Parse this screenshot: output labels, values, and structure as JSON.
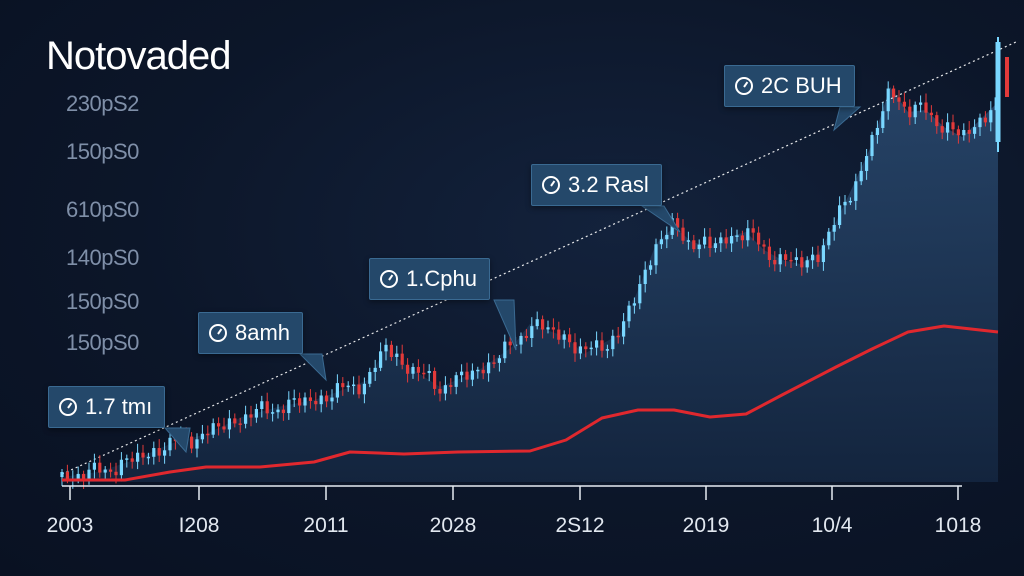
{
  "chart_data": {
    "type": "line",
    "title": "Notovaded",
    "y_tick_labels": [
      "230pS2",
      "150pS0",
      "610pS0",
      "140pS0",
      "150pS0",
      "150pS0"
    ],
    "x_tick_labels": [
      "2003",
      "I208",
      "2011",
      "2028",
      "2S12",
      "2019",
      "10/4",
      "1018"
    ],
    "x_range": [
      0,
      1000
    ],
    "y_range": [
      0,
      450
    ],
    "grid": false,
    "series": [
      {
        "style": "candlestick",
        "color_up": "#7ad7ff",
        "color_down": "#e23a3a",
        "points": [
          [
            0,
            5
          ],
          [
            40,
            10
          ],
          [
            80,
            22
          ],
          [
            120,
            38
          ],
          [
            160,
            48
          ],
          [
            200,
            65
          ],
          [
            240,
            75
          ],
          [
            280,
            82
          ],
          [
            300,
            88
          ],
          [
            340,
            102
          ],
          [
            360,
            135
          ],
          [
            380,
            118
          ],
          [
            420,
            95
          ],
          [
            460,
            110
          ],
          [
            500,
            135
          ],
          [
            520,
            158
          ],
          [
            560,
            145
          ],
          [
            580,
            128
          ],
          [
            620,
            148
          ],
          [
            640,
            192
          ],
          [
            660,
            238
          ],
          [
            680,
            255
          ],
          [
            700,
            240
          ],
          [
            720,
            235
          ],
          [
            740,
            245
          ],
          [
            760,
            250
          ],
          [
            780,
            232
          ],
          [
            800,
            222
          ],
          [
            820,
            218
          ],
          [
            840,
            228
          ],
          [
            860,
            260
          ],
          [
            880,
            298
          ],
          [
            900,
            338
          ],
          [
            920,
            395
          ],
          [
            940,
            370
          ],
          [
            960,
            372
          ],
          [
            980,
            355
          ],
          [
            1000,
            345
          ],
          [
            1020,
            362
          ],
          [
            1040,
            380
          ]
        ]
      },
      {
        "style": "line",
        "color": "#e0282e",
        "points": [
          [
            0,
            2
          ],
          [
            70,
            2
          ],
          [
            120,
            10
          ],
          [
            160,
            15
          ],
          [
            220,
            15
          ],
          [
            280,
            20
          ],
          [
            320,
            30
          ],
          [
            380,
            28
          ],
          [
            440,
            30
          ],
          [
            520,
            31
          ],
          [
            560,
            42
          ],
          [
            600,
            64
          ],
          [
            640,
            72
          ],
          [
            680,
            72
          ],
          [
            720,
            65
          ],
          [
            760,
            68
          ],
          [
            800,
            87
          ],
          [
            860,
            115
          ],
          [
            900,
            133
          ],
          [
            940,
            150
          ],
          [
            980,
            156
          ],
          [
            1040,
            150
          ]
        ]
      },
      {
        "style": "dotted-trend",
        "color": "#ffffff",
        "points": [
          [
            0,
            8
          ],
          [
            1060,
            440
          ]
        ]
      }
    ],
    "annotations": [
      {
        "label": "1.7 tmı",
        "icon": "clock-icon"
      },
      {
        "label": "8amh",
        "icon": "clock-icon"
      },
      {
        "label": "1.Cphu",
        "icon": "clock-icon"
      },
      {
        "label": "3.2 Rasl",
        "icon": "clock-icon"
      },
      {
        "label": "2C BUH",
        "icon": "clock-icon"
      }
    ],
    "colors": {
      "background": "#0c1629",
      "area_fill": "#1a3354",
      "callout": "#24486a",
      "axis": "#e6ecf3"
    }
  }
}
